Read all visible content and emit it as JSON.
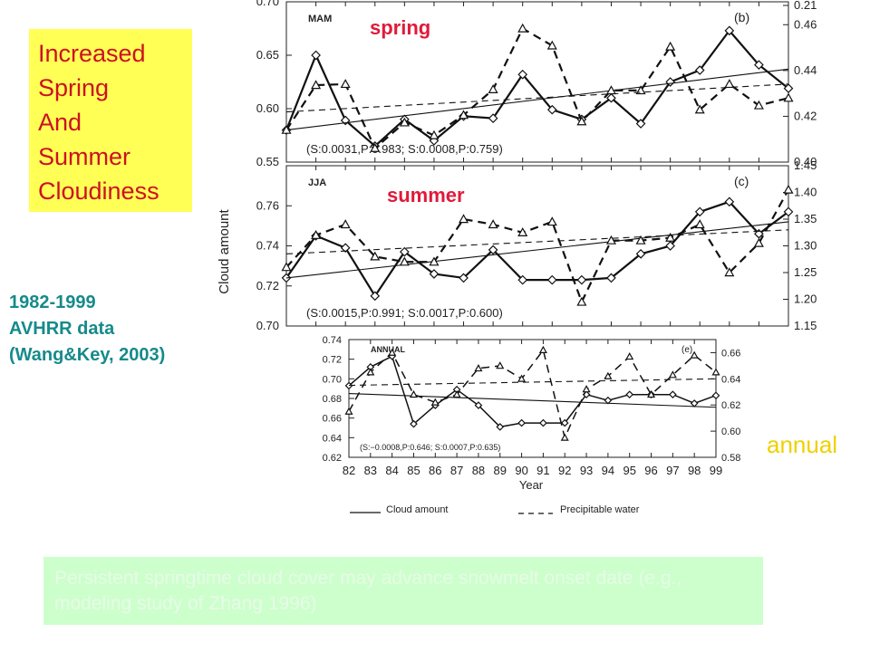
{
  "callout": {
    "lines": [
      "Increased",
      "Spring",
      "And",
      "Summer",
      "Cloudiness"
    ]
  },
  "source": {
    "lines": [
      "1982-1999",
      "AVHRR data",
      "(Wang&Key, 2003)"
    ]
  },
  "labels": {
    "spring": "spring",
    "summer": "summer",
    "annual": "annual"
  },
  "note": {
    "text": "Persistent springtime cloud cover may advance snowmelt onset date  (e.g., modeling study of Zhang 1996)"
  },
  "colors": {
    "callout_bg": "#ffff55",
    "callout_text": "#cc1122",
    "source_text": "#168a8a",
    "season_text": "#e01a3a",
    "annual_text": "#f0d000",
    "note_bg": "#ccffcc"
  },
  "chart_data": [
    {
      "type": "line",
      "panel_season": "MAM",
      "panel_letter": "(b)",
      "x": [
        82,
        83,
        84,
        85,
        86,
        87,
        88,
        89,
        90,
        91,
        92,
        93,
        94,
        95,
        96,
        97,
        98,
        99
      ],
      "ylabel": "Cloud amount",
      "ylim": [
        0.55,
        0.7
      ],
      "yticks": [
        "0.70",
        "0.65",
        "0.60",
        "0.55"
      ],
      "y2lim": [
        0.4,
        0.47
      ],
      "y2ticks": [
        "0.21",
        "0.46",
        "0.44",
        "0.42",
        "0.40"
      ],
      "stats": "(S:0.0031,P:0.983; S:0.0008,P:0.759)",
      "series": [
        {
          "name": "Cloud amount",
          "axis": "left",
          "values": [
            0.58,
            0.65,
            0.589,
            0.565,
            0.59,
            0.57,
            0.593,
            0.591,
            0.632,
            0.599,
            0.59,
            0.61,
            0.586,
            0.625,
            0.636,
            0.673,
            0.641,
            0.619
          ]
        },
        {
          "name": "Precipitable water",
          "axis": "left",
          "values": [
            0.58,
            0.622,
            0.623,
            0.563,
            0.587,
            0.575,
            0.594,
            0.618,
            0.675,
            0.659,
            0.588,
            0.617,
            0.617,
            0.658,
            0.599,
            0.623,
            0.603,
            0.61
          ]
        }
      ],
      "trends": {
        "Cloud amount": [
          0.58,
          0.637
        ],
        "Precipitable water": [
          0.597,
          0.623
        ]
      }
    },
    {
      "type": "line",
      "panel_season": "JJA",
      "panel_letter": "(c)",
      "x": [
        82,
        83,
        84,
        85,
        86,
        87,
        88,
        89,
        90,
        91,
        92,
        93,
        94,
        95,
        96,
        97,
        98,
        99
      ],
      "ylabel": "Cloud amount",
      "ylim": [
        0.7,
        0.78
      ],
      "yticks": [
        "0.76",
        "0.74",
        "0.72",
        "0.70"
      ],
      "y2lim": [
        1.15,
        1.45
      ],
      "y2ticks": [
        "1.45",
        "1.40",
        "1.35",
        "1.30",
        "1.25",
        "1.20",
        "1.15"
      ],
      "stats": "(S:0.0015,P:0.991; S:0.0017,P:0.600)",
      "series": [
        {
          "name": "Cloud amount",
          "axis": "left",
          "values": [
            0.724,
            0.745,
            0.739,
            0.715,
            0.737,
            0.726,
            0.724,
            0.738,
            0.723,
            0.723,
            0.723,
            0.724,
            0.736,
            0.74,
            0.757,
            0.762,
            0.746,
            0.757
          ]
        },
        {
          "name": "Precipitable water",
          "axis": "right",
          "values": [
            1.26,
            1.32,
            1.34,
            1.28,
            1.27,
            1.27,
            1.35,
            1.34,
            1.325,
            1.345,
            1.195,
            1.31,
            1.31,
            1.315,
            1.34,
            1.25,
            1.305,
            1.405
          ]
        }
      ],
      "trends": {
        "Cloud amount": [
          0.724,
          0.752
        ],
        "Precipitable water": [
          1.285,
          1.33
        ]
      }
    },
    {
      "type": "line",
      "panel_season": "ANNUAL",
      "panel_letter": "(e)",
      "x": [
        82,
        83,
        84,
        85,
        86,
        87,
        88,
        89,
        90,
        91,
        92,
        93,
        94,
        95,
        96,
        97,
        98,
        99
      ],
      "xticks": [
        "82",
        "83",
        "84",
        "85",
        "86",
        "87",
        "88",
        "89",
        "90",
        "91",
        "92",
        "93",
        "94",
        "95",
        "96",
        "97",
        "98",
        "99"
      ],
      "xlabel": "Year",
      "ylim": [
        0.62,
        0.74
      ],
      "yticks": [
        "0.74",
        "0.72",
        "0.70",
        "0.68",
        "0.66",
        "0.64",
        "0.62"
      ],
      "y2lim": [
        0.58,
        0.67
      ],
      "y2ticks": [
        "0.66",
        "0.64",
        "0.62",
        "0.60",
        "0.58"
      ],
      "stats": "(S:−0.0008,P:0.646; S:0.0007,P:0.635)",
      "series": [
        {
          "name": "Cloud amount",
          "axis": "left",
          "values": [
            0.693,
            0.712,
            0.723,
            0.654,
            0.673,
            0.689,
            0.673,
            0.651,
            0.655,
            0.655,
            0.655,
            0.684,
            0.678,
            0.684,
            0.684,
            0.684,
            0.675,
            0.683
          ]
        },
        {
          "name": "Precipitable water",
          "axis": "right",
          "values": [
            0.615,
            0.645,
            0.66,
            0.628,
            0.622,
            0.628,
            0.648,
            0.65,
            0.64,
            0.662,
            0.595,
            0.632,
            0.642,
            0.657,
            0.628,
            0.643,
            0.658,
            0.645
          ]
        }
      ],
      "trends": {
        "Cloud amount": [
          0.685,
          0.671
        ],
        "Precipitable water": [
          0.635,
          0.64
        ]
      }
    }
  ],
  "legend": {
    "solid_label": "Cloud amount",
    "dashed_label": "Precipitable water"
  }
}
